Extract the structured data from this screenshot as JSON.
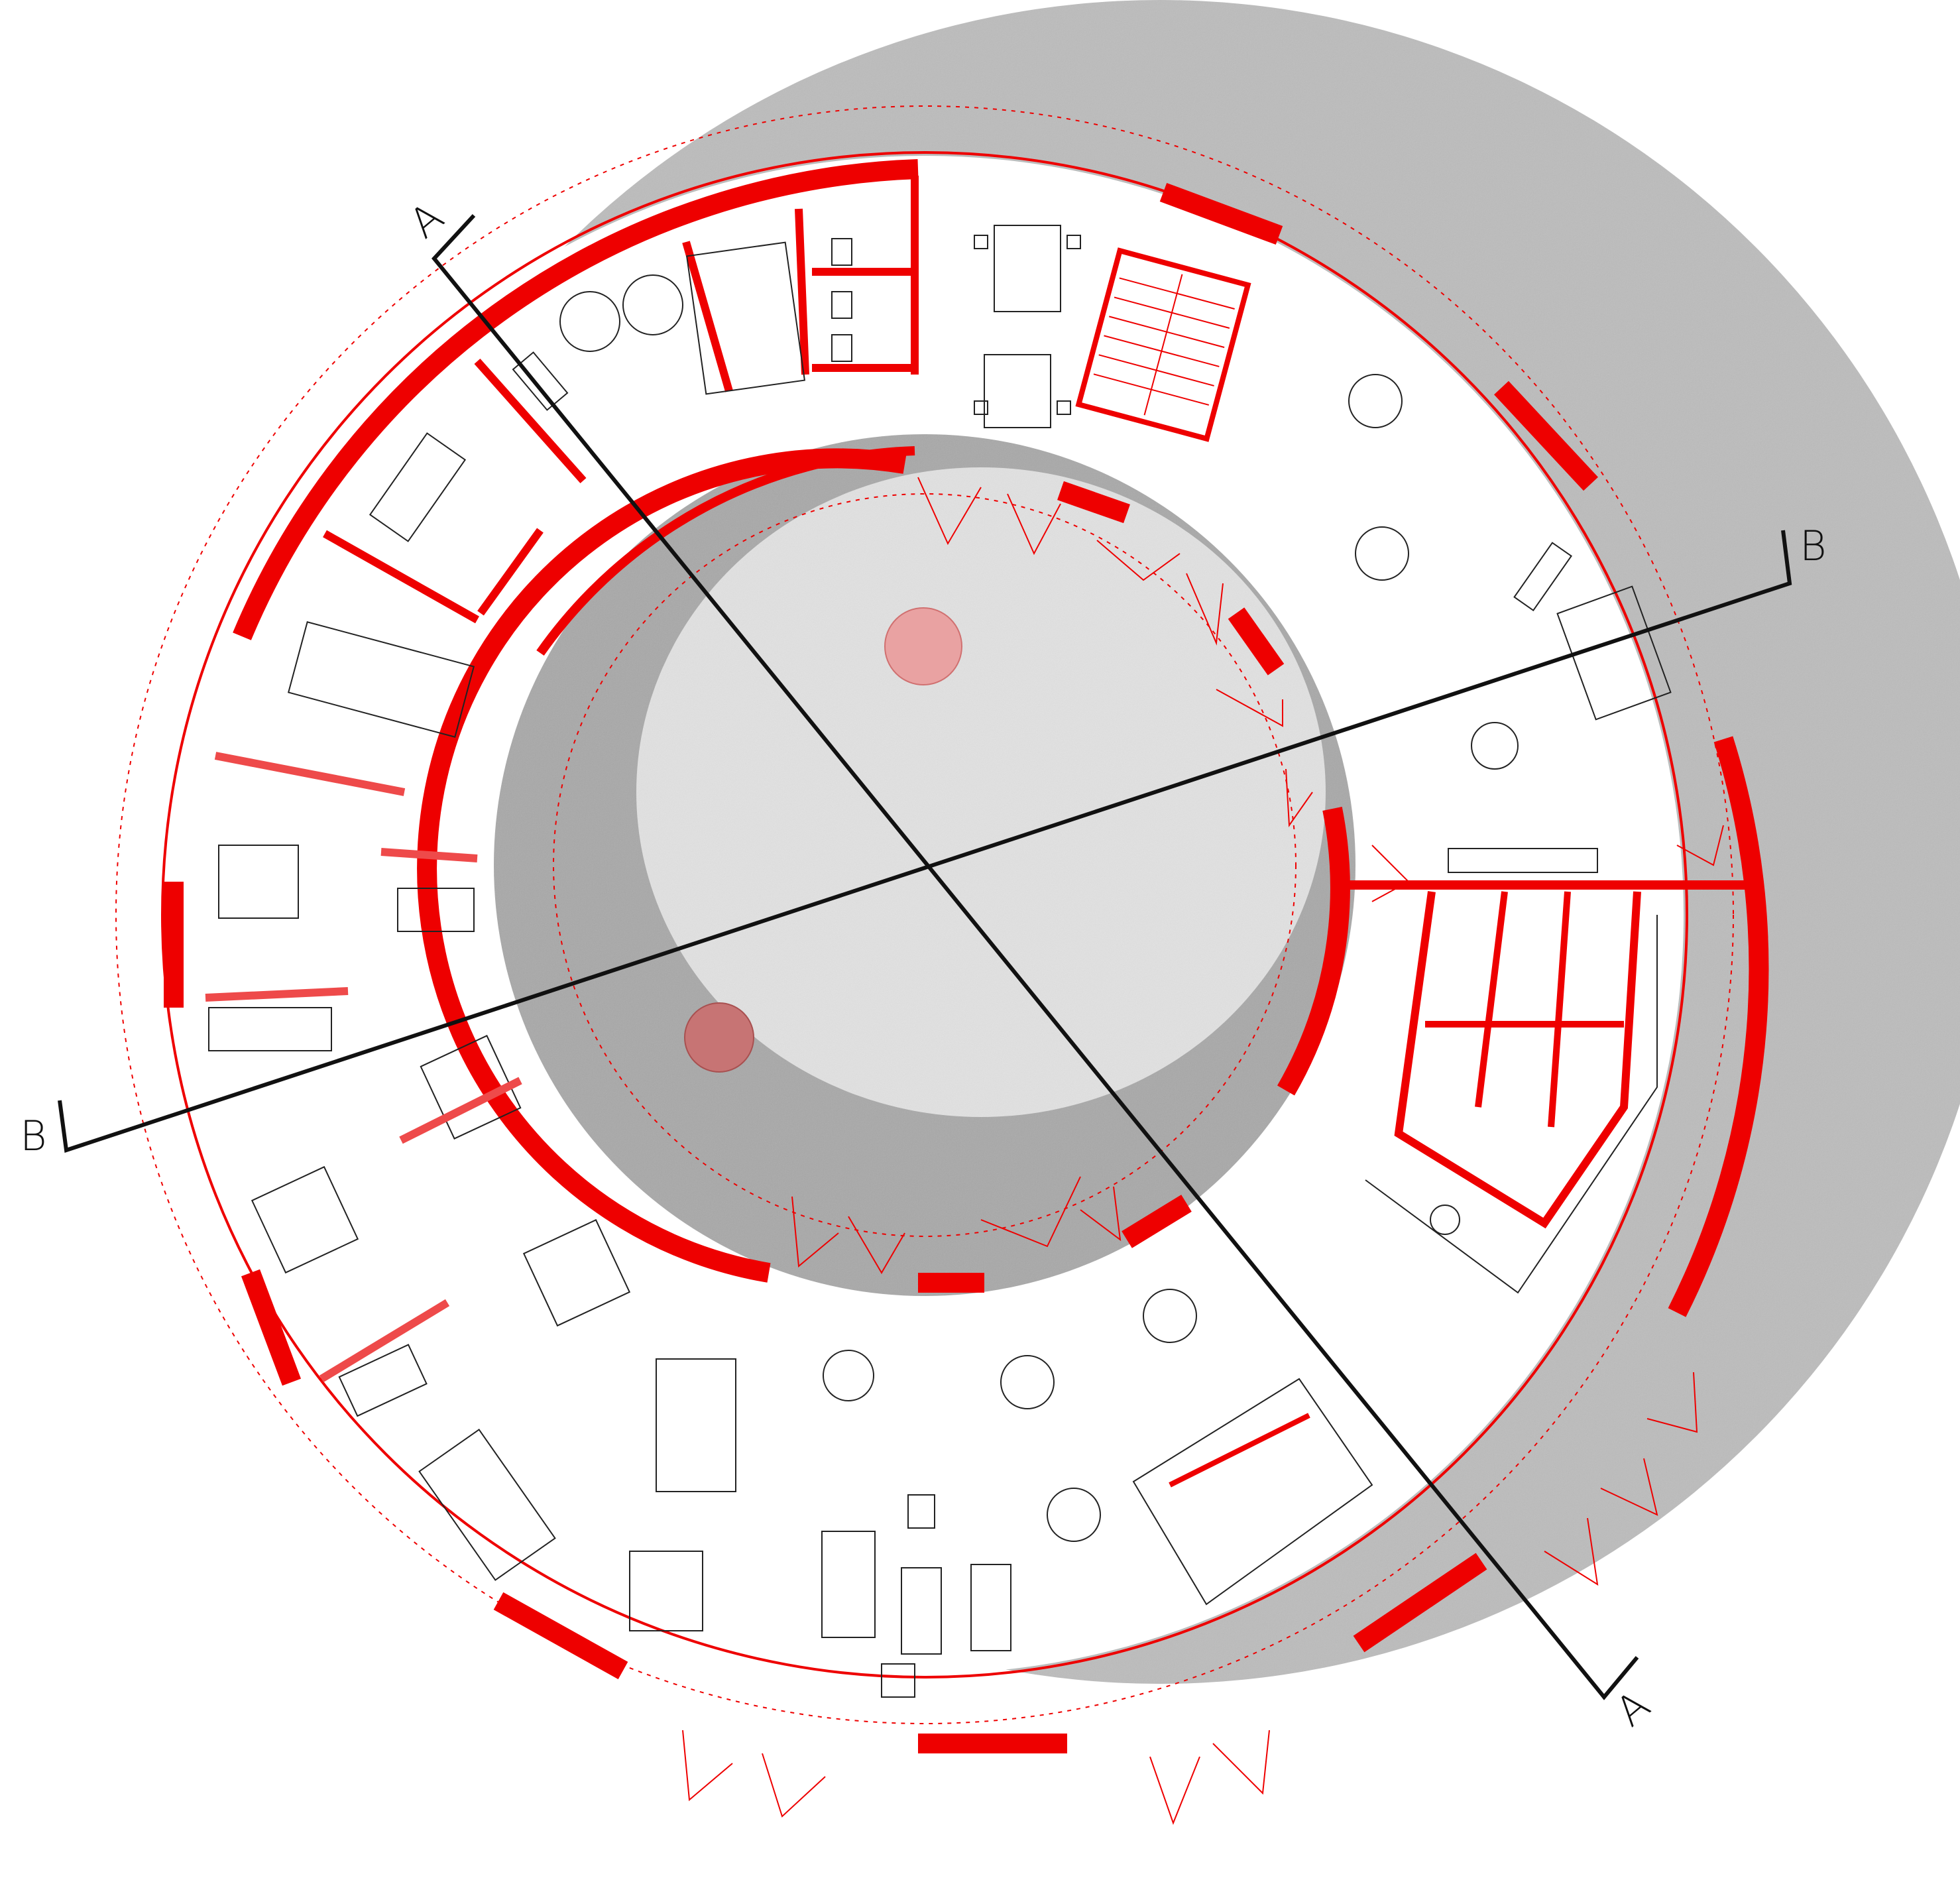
{
  "section_marks": {
    "a_top": "A",
    "a_bottom": "A",
    "b_left": "B",
    "b_right": "B"
  },
  "colors": {
    "wall_red": "#ee0000",
    "ground_grey": "#b9b9b9",
    "court_grey": "#a9a9a9",
    "court_light": "#e4e4e4",
    "section_line": "#111111",
    "tree_pink": "#e9a0a0",
    "tree_dark": "#c46a6a"
  }
}
